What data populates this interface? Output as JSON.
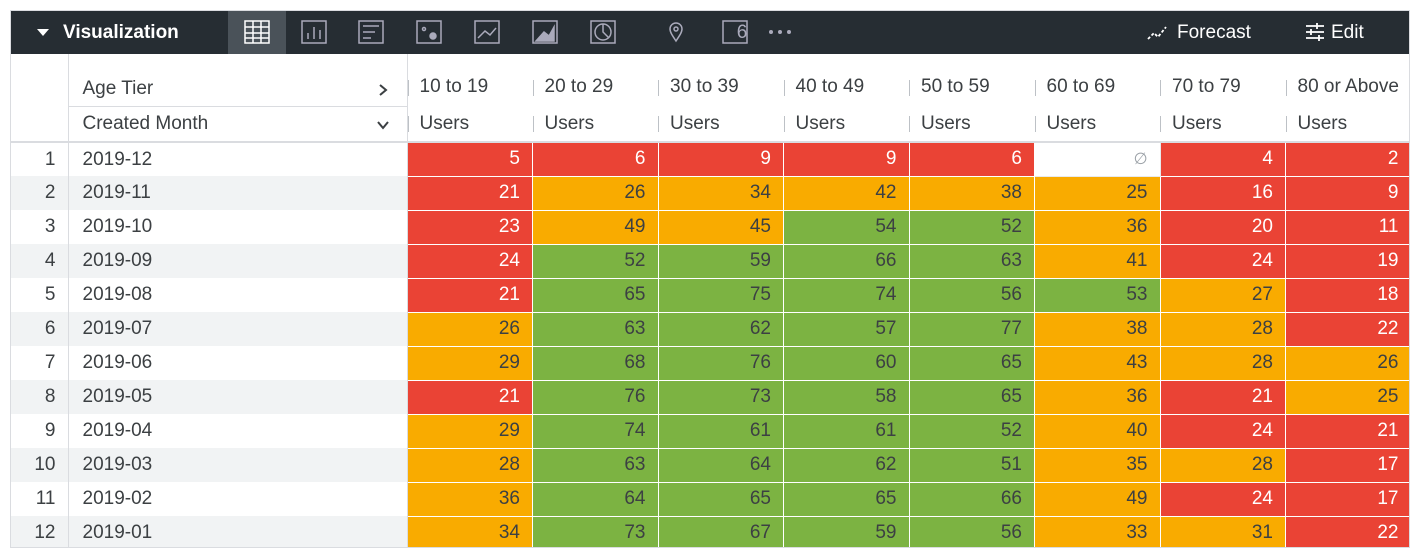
{
  "toolbar": {
    "title": "Visualization",
    "single_value_icon": "6",
    "forecast": "Forecast",
    "edit": "Edit"
  },
  "table": {
    "pivot_label": "Age Tier",
    "dimension_label": "Created Month",
    "measure_label": "Users",
    "pivot_values": [
      "10 to 19",
      "20 to 29",
      "30 to 39",
      "40 to 49",
      "50 to 59",
      "60 to 69",
      "70 to 79",
      "80 or Above"
    ],
    "null_symbol": "∅",
    "color_rules": [
      {
        "below": 25,
        "color": "#ea4335"
      },
      {
        "below": 50,
        "color": "#f9ab00"
      },
      {
        "color": "#7cb342"
      }
    ],
    "rows": [
      {
        "index": "1",
        "month": "2019-12",
        "values": [
          5,
          6,
          9,
          9,
          6,
          null,
          4,
          2
        ]
      },
      {
        "index": "2",
        "month": "2019-11",
        "values": [
          21,
          26,
          34,
          42,
          38,
          25,
          16,
          9
        ]
      },
      {
        "index": "3",
        "month": "2019-10",
        "values": [
          23,
          49,
          45,
          54,
          52,
          36,
          20,
          11
        ]
      },
      {
        "index": "4",
        "month": "2019-09",
        "values": [
          24,
          52,
          59,
          66,
          63,
          41,
          24,
          19
        ]
      },
      {
        "index": "5",
        "month": "2019-08",
        "values": [
          21,
          65,
          75,
          74,
          56,
          53,
          27,
          18
        ]
      },
      {
        "index": "6",
        "month": "2019-07",
        "values": [
          26,
          63,
          62,
          57,
          77,
          38,
          28,
          22
        ]
      },
      {
        "index": "7",
        "month": "2019-06",
        "values": [
          29,
          68,
          76,
          60,
          65,
          43,
          28,
          26
        ]
      },
      {
        "index": "8",
        "month": "2019-05",
        "values": [
          21,
          76,
          73,
          58,
          65,
          36,
          21,
          25
        ]
      },
      {
        "index": "9",
        "month": "2019-04",
        "values": [
          29,
          74,
          61,
          61,
          52,
          40,
          24,
          21
        ]
      },
      {
        "index": "10",
        "month": "2019-03",
        "values": [
          28,
          63,
          64,
          62,
          51,
          35,
          28,
          17
        ]
      },
      {
        "index": "11",
        "month": "2019-02",
        "values": [
          36,
          64,
          65,
          65,
          66,
          49,
          24,
          17
        ]
      },
      {
        "index": "12",
        "month": "2019-01",
        "values": [
          34,
          73,
          67,
          59,
          56,
          33,
          31,
          22
        ]
      }
    ]
  }
}
